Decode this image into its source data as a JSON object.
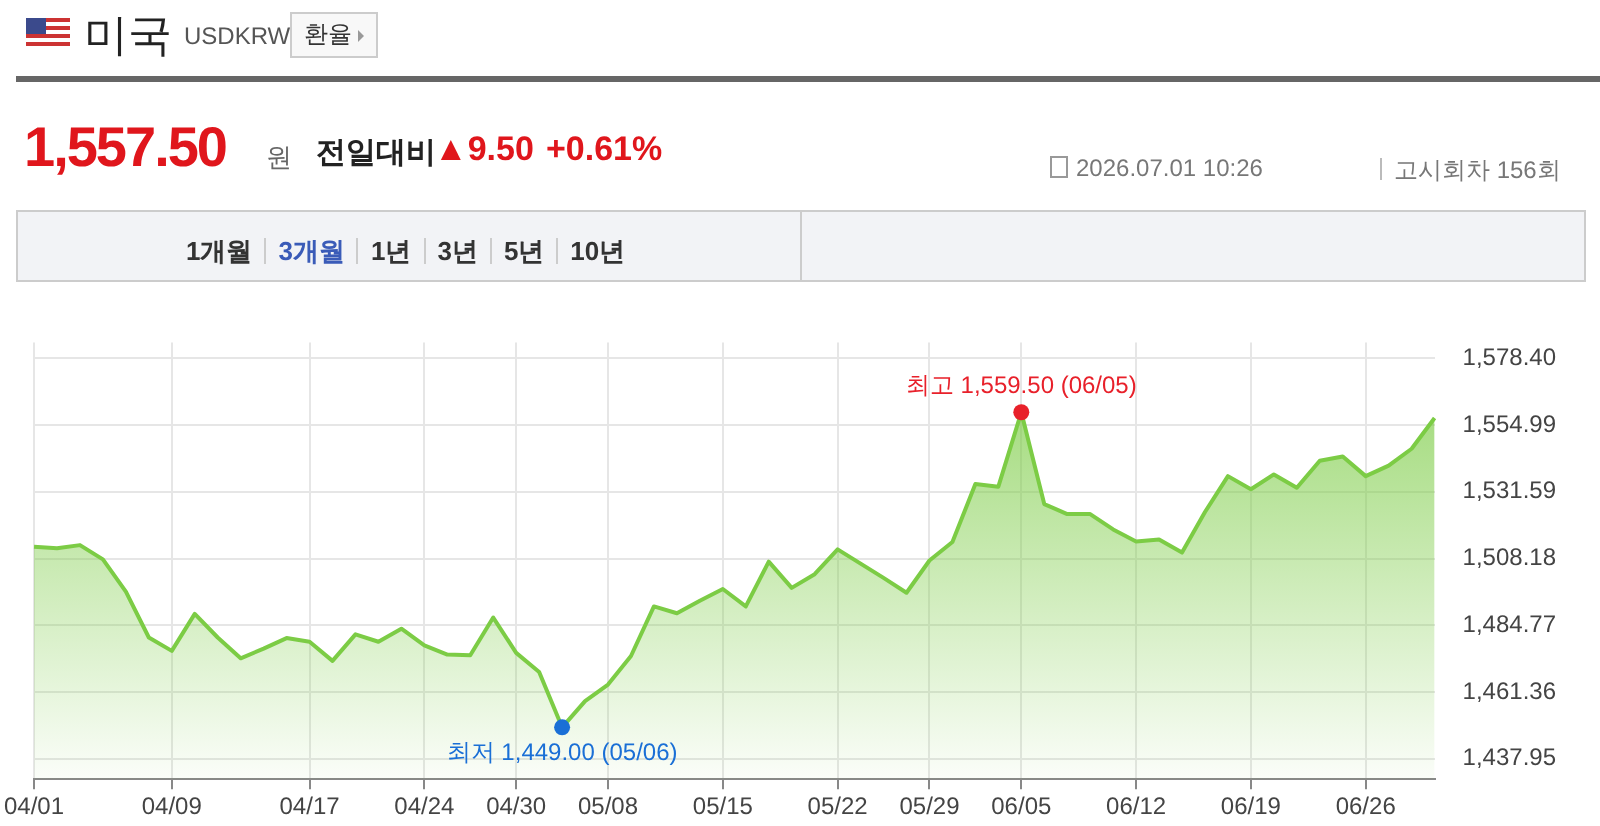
{
  "chart_data": {
    "type": "area",
    "title": "미국",
    "subtitle": "USDKRW",
    "annotations": [
      "환율",
      "1,557.50",
      "원",
      "전일대비",
      "▲9.50",
      "+0.61%",
      "2026.07.01 10:26",
      "고시회차 156회",
      "1개월",
      "3개월",
      "1년",
      "3년",
      "5년",
      "10년",
      {
        "text": "최저 1,449.00 (05/06)",
        "y": 1449.0
      },
      {
        "text": "최고 1,559.50 (06/05)",
        "y": 1559.5
      }
    ],
    "categories": [
      "04/01",
      null,
      null,
      null,
      null,
      null,
      "04/09",
      null,
      null,
      null,
      null,
      null,
      "04/17",
      null,
      null,
      null,
      null,
      "04/24",
      null,
      null,
      null,
      "04/30",
      null,
      null,
      null,
      "05/08",
      null,
      null,
      null,
      null,
      "05/15",
      null,
      null,
      null,
      null,
      "05/22",
      null,
      null,
      null,
      "05/29",
      null,
      null,
      null,
      "06/05",
      null,
      null,
      null,
      null,
      "06/12",
      null,
      null,
      null,
      null,
      "06/19",
      null,
      null,
      null,
      null,
      "06/26",
      null,
      null,
      null
    ],
    "series": [
      {
        "color": "#7ccc45",
        "values": [
          1512.3,
          1511.8,
          1512.9,
          1507.9,
          1496.6,
          1480.5,
          1475.8,
          1488.8,
          1480.5,
          1473.2,
          1476.6,
          1480.3,
          1479.0,
          1472.3,
          1481.6,
          1479.0,
          1483.6,
          1477.7,
          1474.5,
          1474.3,
          1487.5,
          1475.1,
          1468.4,
          1449.0,
          1458.2,
          1464.0,
          1474.0,
          1491.4,
          1489.0,
          1493.4,
          1497.5,
          1491.4,
          1507.1,
          1497.9,
          1502.7,
          1511.4,
          1506.4,
          1501.4,
          1496.2,
          1507.5,
          1514.0,
          1534.3,
          1533.4,
          1559.5,
          1527.3,
          1523.8,
          1523.8,
          1518.4,
          1514.2,
          1514.9,
          1510.3,
          1524.5,
          1537.1,
          1532.5,
          1537.7,
          1533.0,
          1542.5,
          1544.0,
          1537.1,
          1540.8,
          1546.7,
          1557.5
        ]
      }
    ],
    "ylim": [
      1430.8,
      1584
    ],
    "yticks": [
      {
        "value": 1437.95,
        "label": "1,437.95"
      },
      {
        "value": 1461.36,
        "label": "1,461.36"
      },
      {
        "value": 1484.77,
        "label": "1,484.77"
      },
      {
        "value": 1508.18,
        "label": "1,508.18"
      },
      {
        "value": 1531.59,
        "label": "1,531.59"
      },
      {
        "value": 1554.99,
        "label": "1,554.99"
      },
      {
        "value": 1578.4,
        "label": "1,578.40"
      }
    ],
    "grid": true,
    "legend": false,
    "marker": "none",
    "line_style": "solid"
  }
}
